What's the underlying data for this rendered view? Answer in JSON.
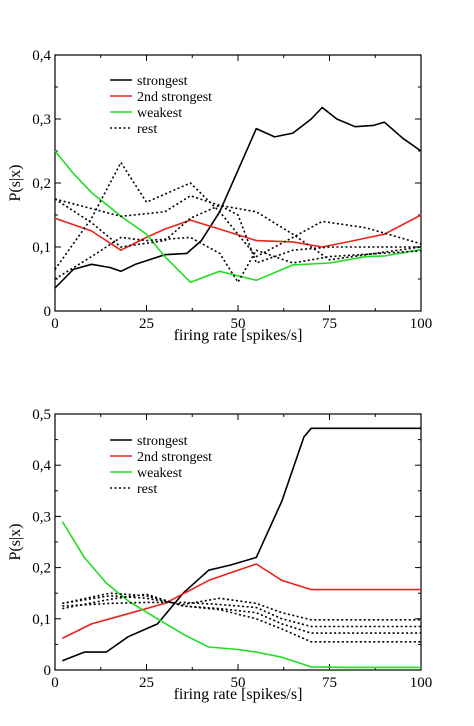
{
  "chart_data": [
    {
      "type": "line",
      "xlabel": "firing rate [spikes/s]",
      "ylabel": "P(s|x)",
      "xlim": [
        0,
        100
      ],
      "ylim": [
        0,
        0.4
      ],
      "xticks": [
        "0",
        "25",
        "50",
        "75",
        "100"
      ],
      "yticks": [
        "0",
        "0,1",
        "0,2",
        "0,3",
        "0,4"
      ],
      "legend_position": "top-left",
      "series": [
        {
          "name": "strongest",
          "color": "#000000",
          "style": "solid",
          "x": [
            0,
            5,
            10,
            15,
            18,
            22,
            30,
            36,
            40,
            45,
            50,
            55,
            60,
            65,
            70,
            73,
            77,
            82,
            87,
            90,
            95,
            100
          ],
          "y": [
            0.036,
            0.065,
            0.073,
            0.068,
            0.062,
            0.073,
            0.088,
            0.09,
            0.11,
            0.155,
            0.22,
            0.285,
            0.272,
            0.278,
            0.3,
            0.318,
            0.3,
            0.288,
            0.29,
            0.295,
            0.27,
            0.25
          ]
        },
        {
          "name": "2nd strongest",
          "color": "#e8231c",
          "style": "solid",
          "x": [
            0,
            10,
            18,
            25,
            30,
            37,
            45,
            55,
            65,
            73,
            80,
            90,
            100
          ],
          "y": [
            0.145,
            0.125,
            0.095,
            0.115,
            0.128,
            0.142,
            0.128,
            0.11,
            0.108,
            0.1,
            0.108,
            0.12,
            0.15
          ]
        },
        {
          "name": "weakest",
          "color": "#22dd22",
          "style": "solid",
          "x": [
            0,
            5,
            10,
            15,
            18,
            25,
            30,
            37,
            45,
            55,
            65,
            75,
            85,
            90,
            100
          ],
          "y": [
            0.25,
            0.215,
            0.185,
            0.162,
            0.148,
            0.12,
            0.085,
            0.045,
            0.062,
            0.048,
            0.072,
            0.075,
            0.085,
            0.086,
            0.096
          ]
        },
        {
          "name": "rest",
          "color": "#000000",
          "style": "dotted",
          "x": [
            0,
            10,
            18,
            25,
            37,
            45,
            55,
            65,
            73,
            85,
            100
          ],
          "y": [
            0.065,
            0.145,
            0.232,
            0.17,
            0.2,
            0.155,
            0.085,
            0.115,
            0.14,
            0.13,
            0.105
          ]
        },
        {
          "name": "",
          "color": "#000000",
          "style": "dotted",
          "x": [
            0,
            10,
            18,
            30,
            37,
            45,
            55,
            65,
            75,
            100
          ],
          "y": [
            0.175,
            0.16,
            0.148,
            0.155,
            0.18,
            0.165,
            0.155,
            0.12,
            0.08,
            0.1
          ]
        },
        {
          "name": "",
          "color": "#000000",
          "style": "dotted",
          "x": [
            0,
            10,
            18,
            30,
            37,
            45,
            50,
            55,
            65,
            75,
            100
          ],
          "y": [
            0.175,
            0.138,
            0.1,
            0.11,
            0.145,
            0.165,
            0.15,
            0.075,
            0.095,
            0.1,
            0.1
          ]
        },
        {
          "name": "",
          "color": "#000000",
          "style": "dotted",
          "x": [
            0,
            10,
            18,
            25,
            37,
            45,
            50,
            55,
            65,
            75,
            100
          ],
          "y": [
            0.05,
            0.085,
            0.115,
            0.11,
            0.115,
            0.09,
            0.045,
            0.095,
            0.075,
            0.085,
            0.094
          ]
        }
      ]
    },
    {
      "type": "line",
      "xlabel": "firing rate [spikes/s]",
      "ylabel": "P(s|x)",
      "xlim": [
        0,
        100
      ],
      "ylim": [
        0,
        0.5
      ],
      "xticks": [
        "0",
        "25",
        "50",
        "75",
        "100"
      ],
      "yticks": [
        "0",
        "0,1",
        "0,2",
        "0,3",
        "0,4",
        "0,5"
      ],
      "legend_position": "top-left",
      "series": [
        {
          "name": "strongest",
          "color": "#000000",
          "style": "solid",
          "x": [
            2,
            8,
            14,
            20,
            28,
            35,
            42,
            48,
            55,
            62,
            68,
            70,
            80,
            100
          ],
          "y": [
            0.018,
            0.035,
            0.035,
            0.065,
            0.09,
            0.15,
            0.195,
            0.205,
            0.22,
            0.33,
            0.455,
            0.472,
            0.472,
            0.472
          ]
        },
        {
          "name": "2nd strongest",
          "color": "#e8231c",
          "style": "solid",
          "x": [
            2,
            10,
            20,
            30,
            42,
            50,
            55,
            62,
            70,
            80,
            100
          ],
          "y": [
            0.062,
            0.09,
            0.11,
            0.13,
            0.175,
            0.195,
            0.207,
            0.175,
            0.157,
            0.157,
            0.157
          ]
        },
        {
          "name": "weakest",
          "color": "#22dd22",
          "style": "solid",
          "x": [
            2,
            8,
            14,
            20,
            28,
            35,
            42,
            50,
            55,
            62,
            70,
            80,
            100
          ],
          "y": [
            0.29,
            0.22,
            0.17,
            0.135,
            0.1,
            0.07,
            0.045,
            0.04,
            0.035,
            0.025,
            0.006,
            0.005,
            0.005
          ]
        },
        {
          "name": "rest",
          "color": "#000000",
          "style": "dotted",
          "x": [
            2,
            15,
            25,
            35,
            45,
            55,
            62,
            70,
            80,
            100
          ],
          "y": [
            0.13,
            0.145,
            0.14,
            0.128,
            0.14,
            0.13,
            0.112,
            0.098,
            0.098,
            0.098
          ]
        },
        {
          "name": "",
          "color": "#000000",
          "style": "dotted",
          "x": [
            2,
            15,
            25,
            35,
            45,
            55,
            62,
            70,
            80,
            100
          ],
          "y": [
            0.125,
            0.13,
            0.132,
            0.132,
            0.128,
            0.122,
            0.1,
            0.085,
            0.085,
            0.085
          ]
        },
        {
          "name": "",
          "color": "#000000",
          "style": "dotted",
          "x": [
            2,
            15,
            25,
            35,
            45,
            55,
            62,
            70,
            80,
            100
          ],
          "y": [
            0.12,
            0.138,
            0.148,
            0.125,
            0.12,
            0.112,
            0.09,
            0.072,
            0.072,
            0.072
          ]
        },
        {
          "name": "",
          "color": "#000000",
          "style": "dotted",
          "x": [
            2,
            15,
            25,
            35,
            45,
            55,
            62,
            70,
            80,
            100
          ],
          "y": [
            0.13,
            0.15,
            0.145,
            0.125,
            0.118,
            0.1,
            0.08,
            0.055,
            0.055,
            0.055
          ]
        }
      ]
    }
  ]
}
